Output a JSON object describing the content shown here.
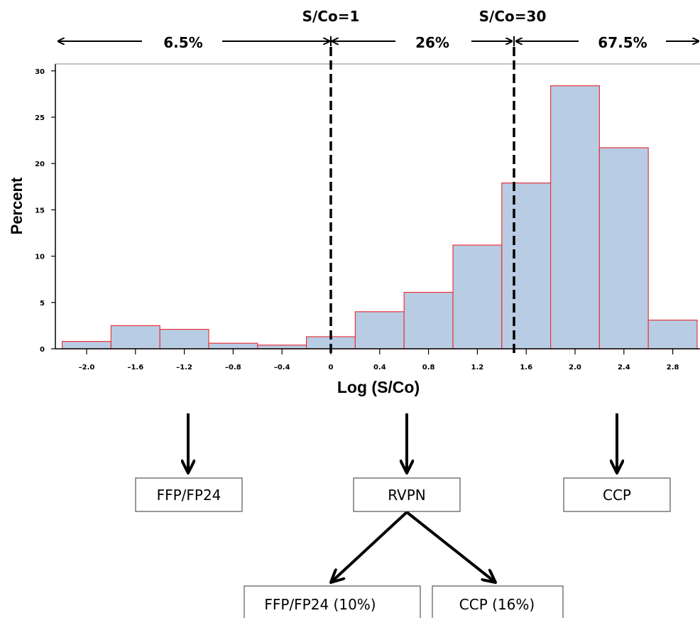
{
  "chart_data": {
    "type": "bar",
    "xlabel": "Log (S/Co)",
    "ylabel": "Percent",
    "xlim": [
      -2.2,
      3.0
    ],
    "ylim": [
      0,
      30
    ],
    "bin_width": 0.4,
    "x_ticks": [
      -2.0,
      -1.6,
      -1.2,
      -0.8,
      -0.4,
      0,
      0.4,
      0.8,
      1.2,
      1.6,
      2.0,
      2.4,
      2.8
    ],
    "x_tick_labels": [
      "–2.0",
      "–1.6",
      "–1.2",
      "–0.8",
      "–0.4",
      "0",
      "0.4",
      "0.8",
      "1.2",
      "1.6",
      "2.0",
      "2.4",
      "2.8"
    ],
    "y_ticks": [
      0,
      5,
      10,
      15,
      20,
      25,
      30
    ],
    "y_tick_labels": [
      "0",
      "5",
      "10",
      "15",
      "20",
      "25",
      "30"
    ],
    "bins": [
      {
        "start": -2.2,
        "end": -1.8,
        "value": 0.8
      },
      {
        "start": -1.8,
        "end": -1.4,
        "value": 2.5
      },
      {
        "start": -1.4,
        "end": -1.0,
        "value": 2.1
      },
      {
        "start": -1.0,
        "end": -0.6,
        "value": 0.6
      },
      {
        "start": -0.6,
        "end": -0.2,
        "value": 0.4
      },
      {
        "start": -0.2,
        "end": 0.2,
        "value": 1.3
      },
      {
        "start": 0.2,
        "end": 0.6,
        "value": 4.0
      },
      {
        "start": 0.6,
        "end": 1.0,
        "value": 6.1
      },
      {
        "start": 1.0,
        "end": 1.4,
        "value": 11.2
      },
      {
        "start": 1.4,
        "end": 1.8,
        "value": 17.9
      },
      {
        "start": 1.8,
        "end": 2.2,
        "value": 28.4
      },
      {
        "start": 2.2,
        "end": 2.6,
        "value": 21.7
      },
      {
        "start": 2.6,
        "end": 3.0,
        "value": 3.1
      }
    ],
    "cutoffs": [
      {
        "label": "S/Co=1",
        "x": 0
      },
      {
        "label": "S/Co=30",
        "x": 1.48
      }
    ],
    "region_labels": [
      "6.5%",
      "26%",
      "67.5%"
    ],
    "bar_fill": "#b8cce4",
    "bar_stroke": "#e8353d",
    "grid": false
  },
  "flow": {
    "box_ffp": "FFP/FP24",
    "box_rvpn": "RVPN",
    "box_ccp": "CCP",
    "box_ffp_pct": "FFP/FP24 (10%)",
    "box_ccp_pct": "CCP (16%)"
  }
}
